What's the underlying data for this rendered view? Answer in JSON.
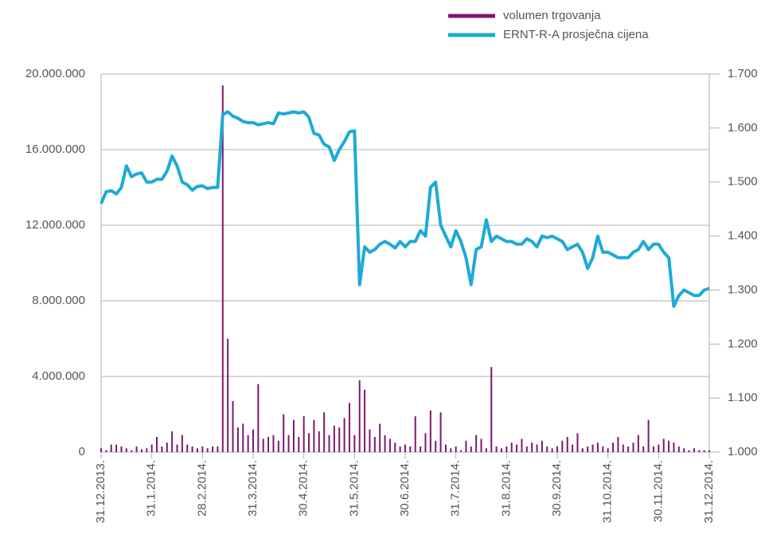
{
  "chart_data": {
    "type": "bar-line",
    "categories": [
      "31.12.2013.",
      null,
      null,
      null,
      null,
      null,
      null,
      null,
      null,
      null,
      "31.1.2014.",
      null,
      null,
      null,
      null,
      null,
      null,
      null,
      null,
      null,
      "28.2.2014.",
      null,
      null,
      null,
      null,
      null,
      null,
      null,
      null,
      null,
      "31.3.2014.",
      null,
      null,
      null,
      null,
      null,
      null,
      null,
      null,
      null,
      "30.4.2014.",
      null,
      null,
      null,
      null,
      null,
      null,
      null,
      null,
      null,
      "31.5.2014.",
      null,
      null,
      null,
      null,
      null,
      null,
      null,
      null,
      null,
      "30.6.2014.",
      null,
      null,
      null,
      null,
      null,
      null,
      null,
      null,
      null,
      "31.7.2014.",
      null,
      null,
      null,
      null,
      null,
      null,
      null,
      null,
      null,
      "31.8.2014.",
      null,
      null,
      null,
      null,
      null,
      null,
      null,
      null,
      null,
      "30.9.2014.",
      null,
      null,
      null,
      null,
      null,
      null,
      null,
      null,
      null,
      "31.10.2014.",
      null,
      null,
      null,
      null,
      null,
      null,
      null,
      null,
      null,
      "30.11.2014.",
      null,
      null,
      null,
      null,
      null,
      null,
      null,
      null,
      null,
      "31.12.2014."
    ],
    "series": [
      {
        "name": "volumen trgovanja",
        "color": "#7b1870",
        "kind": "bar",
        "axis": "y",
        "values": [
          200000,
          100000,
          400000,
          400000,
          300000,
          200000,
          100000,
          300000,
          150000,
          200000,
          400000,
          800000,
          300000,
          500000,
          1100000,
          400000,
          900000,
          400000,
          300000,
          200000,
          300000,
          200000,
          300000,
          300000,
          19400000,
          6000000,
          2700000,
          1300000,
          1500000,
          900000,
          1200000,
          3600000,
          700000,
          800000,
          900000,
          600000,
          2000000,
          900000,
          1700000,
          800000,
          1900000,
          1000000,
          1700000,
          1100000,
          2100000,
          900000,
          1400000,
          1300000,
          1800000,
          2600000,
          900000,
          3800000,
          3300000,
          1200000,
          800000,
          1500000,
          900000,
          700000,
          500000,
          300000,
          400000,
          300000,
          1900000,
          300000,
          1000000,
          2200000,
          600000,
          2100000,
          400000,
          200000,
          300000,
          100000,
          600000,
          300000,
          900000,
          700000,
          200000,
          4500000,
          300000,
          200000,
          300000,
          500000,
          400000,
          700000,
          300000,
          500000,
          400000,
          600000,
          300000,
          200000,
          300000,
          600000,
          800000,
          400000,
          1000000,
          200000,
          300000,
          400000,
          500000,
          300000,
          200000,
          500000,
          800000,
          400000,
          300000,
          500000,
          900000,
          300000,
          1700000,
          300000,
          400000,
          700000,
          600000,
          500000,
          300000,
          200000,
          100000,
          200000,
          100000,
          100000,
          100000
        ]
      },
      {
        "name": "ERNT-R-A prosječna cijena",
        "color": "#1eaad6",
        "kind": "line",
        "axis": "y2",
        "values": [
          1.46,
          1.482,
          1.484,
          1.478,
          1.49,
          1.53,
          1.51,
          1.515,
          1.517,
          1.5,
          1.5,
          1.505,
          1.505,
          1.52,
          1.548,
          1.53,
          1.5,
          1.495,
          1.485,
          1.492,
          1.493,
          1.488,
          1.49,
          1.49,
          1.625,
          1.63,
          1.622,
          1.618,
          1.612,
          1.61,
          1.61,
          1.606,
          1.608,
          1.61,
          1.608,
          1.628,
          1.626,
          1.628,
          1.63,
          1.628,
          1.63,
          1.62,
          1.59,
          1.587,
          1.57,
          1.565,
          1.54,
          1.56,
          1.575,
          1.593,
          1.595,
          1.31,
          1.38,
          1.37,
          1.375,
          1.385,
          1.39,
          1.385,
          1.378,
          1.39,
          1.38,
          1.39,
          1.39,
          1.41,
          1.4,
          1.49,
          1.5,
          1.42,
          1.4,
          1.38,
          1.41,
          1.39,
          1.36,
          1.31,
          1.375,
          1.38,
          1.43,
          1.39,
          1.4,
          1.395,
          1.39,
          1.39,
          1.385,
          1.385,
          1.395,
          1.39,
          1.38,
          1.4,
          1.397,
          1.4,
          1.395,
          1.39,
          1.375,
          1.38,
          1.385,
          1.37,
          1.34,
          1.36,
          1.4,
          1.37,
          1.37,
          1.365,
          1.36,
          1.36,
          1.36,
          1.37,
          1.375,
          1.39,
          1.375,
          1.385,
          1.385,
          1.37,
          1.36,
          1.27,
          1.29,
          1.3,
          1.295,
          1.29,
          1.29,
          1.3,
          1.303
        ]
      }
    ],
    "ylim": [
      0,
      20000000
    ],
    "yticks": [
      0,
      {
        "value": 4000000,
        "label": "4.000.000"
      },
      {
        "value": 8000000,
        "label": "8.000.000"
      },
      {
        "value": 12000000,
        "label": "12.000.000"
      },
      {
        "value": 16000000,
        "label": "16.000.000"
      },
      {
        "value": 20000000,
        "label": "20.000.000"
      }
    ],
    "y2lim": [
      1.0,
      1.7
    ],
    "y2ticks": [
      {
        "value": 1.0,
        "label": "1.000"
      },
      {
        "value": 1.1,
        "label": "1.100"
      },
      {
        "value": 1.2,
        "label": "1.200"
      },
      {
        "value": 1.3,
        "label": "1.300"
      },
      {
        "value": 1.4,
        "label": "1.400"
      },
      {
        "value": 1.5,
        "label": "1.500"
      },
      {
        "value": 1.6,
        "label": "1.600"
      },
      {
        "value": 1.7,
        "label": "1.700"
      }
    ],
    "grid": true,
    "legend": "top-right"
  }
}
